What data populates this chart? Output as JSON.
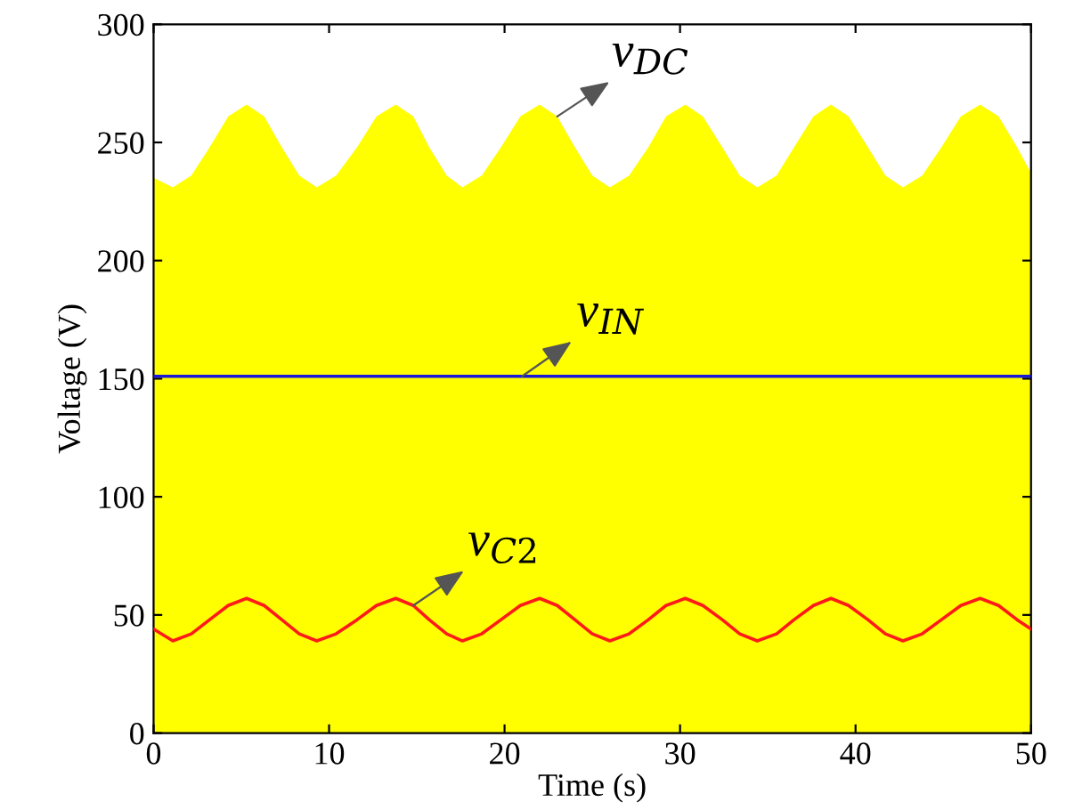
{
  "chart_data": {
    "type": "line",
    "xlabel": "Time (s)",
    "ylabel": "Voltage (V)",
    "x": [
      0,
      1.1,
      2.15,
      3.2,
      4.25,
      5.3,
      6.3,
      7.3,
      8.3,
      9.3,
      10.4,
      11.6,
      12.7,
      13.8,
      14.8,
      15.7,
      16.7,
      17.6,
      18.7,
      19.8,
      20.9,
      22.0,
      23,
      24,
      25,
      26.0,
      27.1,
      28.2,
      29.2,
      30.3,
      31.3,
      32.4,
      33.4,
      34.4,
      35.5,
      36.5,
      37.6,
      38.6,
      39.6,
      40.7,
      41.7,
      42.7,
      43.8,
      44.9,
      46.0,
      47.1,
      48.15,
      49.2,
      50
    ],
    "series": [
      {
        "type": "area",
        "color": "#ffff00",
        "values": [
          235,
          231,
          236,
          248,
          261,
          266,
          261,
          248,
          236,
          231,
          236,
          248,
          261,
          266,
          261,
          248,
          236,
          231,
          236,
          248,
          261,
          266,
          261,
          248,
          236,
          231,
          236,
          248,
          261,
          266,
          261,
          248,
          236,
          231,
          236,
          248,
          261,
          266,
          261,
          248,
          236,
          231,
          236,
          248,
          261,
          266,
          261,
          248,
          237
        ]
      },
      {
        "color": "#1a1ad6",
        "x": [
          0,
          50
        ],
        "values": [
          151,
          151
        ]
      },
      {
        "color": "#ff1a1a",
        "values": [
          44,
          39,
          42,
          48,
          54,
          57,
          54,
          48,
          42,
          39,
          42,
          48,
          54,
          57,
          54,
          48,
          42,
          39,
          42,
          48,
          54,
          57,
          54,
          48,
          42,
          39,
          42,
          48,
          54,
          57,
          54,
          48,
          42,
          39,
          42,
          48,
          54,
          57,
          54,
          48,
          42,
          39,
          42,
          48,
          54,
          57,
          54,
          48,
          44
        ]
      }
    ],
    "annotations": [
      {
        "text": "v$_{DC}$",
        "x": 23,
        "y": 261
      },
      {
        "text": "v$_{IN}$",
        "x": 21,
        "y": 151
      },
      {
        "text": "v$_{C2}$",
        "x": 14.8,
        "y": 54
      }
    ],
    "xlim": [
      0,
      50
    ],
    "ylim": [
      0,
      300
    ],
    "xticks": [
      0,
      10,
      20,
      30,
      40,
      50
    ],
    "yticks": [
      0,
      50,
      100,
      150,
      200,
      250,
      300
    ],
    "grid": false,
    "marker": "none",
    "line_style": "solid"
  }
}
